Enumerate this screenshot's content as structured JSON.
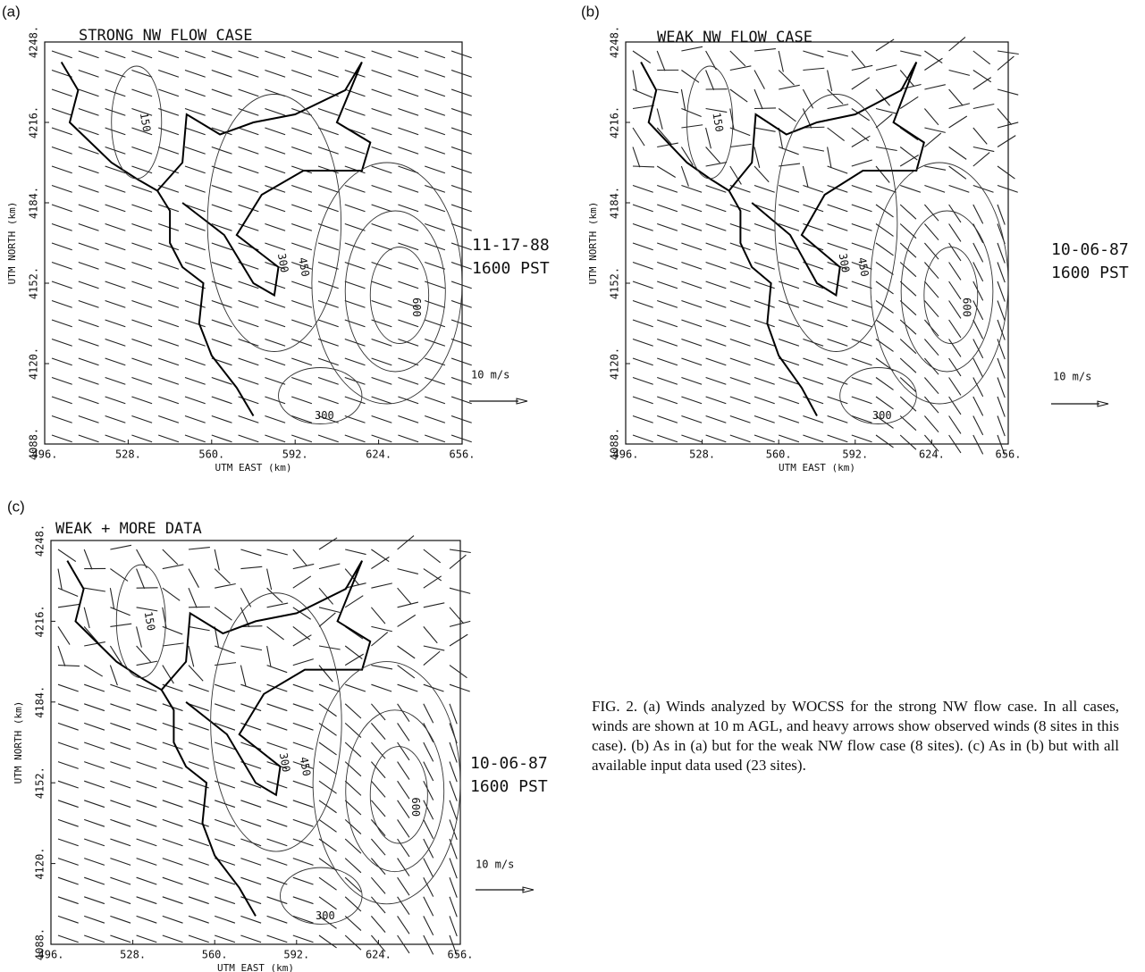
{
  "panels": [
    {
      "label": "(a)",
      "title": "STRONG NW FLOW CASE",
      "x_axis_label": "UTM EAST (km)",
      "y_axis_label": "UTM NORTH (km)",
      "x_ticks": [
        "496.",
        "528.",
        "560.",
        "592.",
        "624.",
        "656."
      ],
      "y_ticks": [
        "4088.",
        "4120.",
        "4152.",
        "4184.",
        "4216.",
        "4248."
      ],
      "date": "11-17-88",
      "time": "1600 PST",
      "scale_label": "10 m/s",
      "contour_labels": [
        "150",
        "300",
        "450",
        "600",
        "300"
      ]
    },
    {
      "label": "(b)",
      "title": "WEAK NW FLOW CASE",
      "x_axis_label": "UTM EAST (km)",
      "y_axis_label": "UTM NORTH (km)",
      "x_ticks": [
        "496.",
        "528.",
        "560.",
        "592.",
        "624.",
        "656."
      ],
      "y_ticks": [
        "4088.",
        "4120.",
        "4152.",
        "4184.",
        "4216.",
        "4248."
      ],
      "date": "10-06-87",
      "time": "1600 PST",
      "scale_label": "10 m/s",
      "contour_labels": [
        "150",
        "300",
        "450",
        "600",
        "300"
      ]
    },
    {
      "label": "(c)",
      "title": "WEAK + MORE DATA",
      "x_axis_label": "UTM EAST (km)",
      "y_axis_label": "UTM NORTH (km)",
      "x_ticks": [
        "496.",
        "528.",
        "560.",
        "592.",
        "624.",
        "656."
      ],
      "y_ticks": [
        "4088.",
        "4120.",
        "4152.",
        "4184.",
        "4216.",
        "4248."
      ],
      "date": "10-06-87",
      "time": "1600 PST",
      "scale_label": "10 m/s",
      "contour_labels": [
        "150",
        "300",
        "450",
        "600",
        "300"
      ]
    }
  ],
  "caption": "FIG. 2. (a) Winds analyzed by WOCSS for the strong NW flow case. In all cases, winds are shown at 10 m AGL, and heavy arrows show observed winds (8 sites in this case). (b) As in (a) but for the weak NW flow case (8 sites). (c) As in (b) but with all available input data used (23 sites)."
}
